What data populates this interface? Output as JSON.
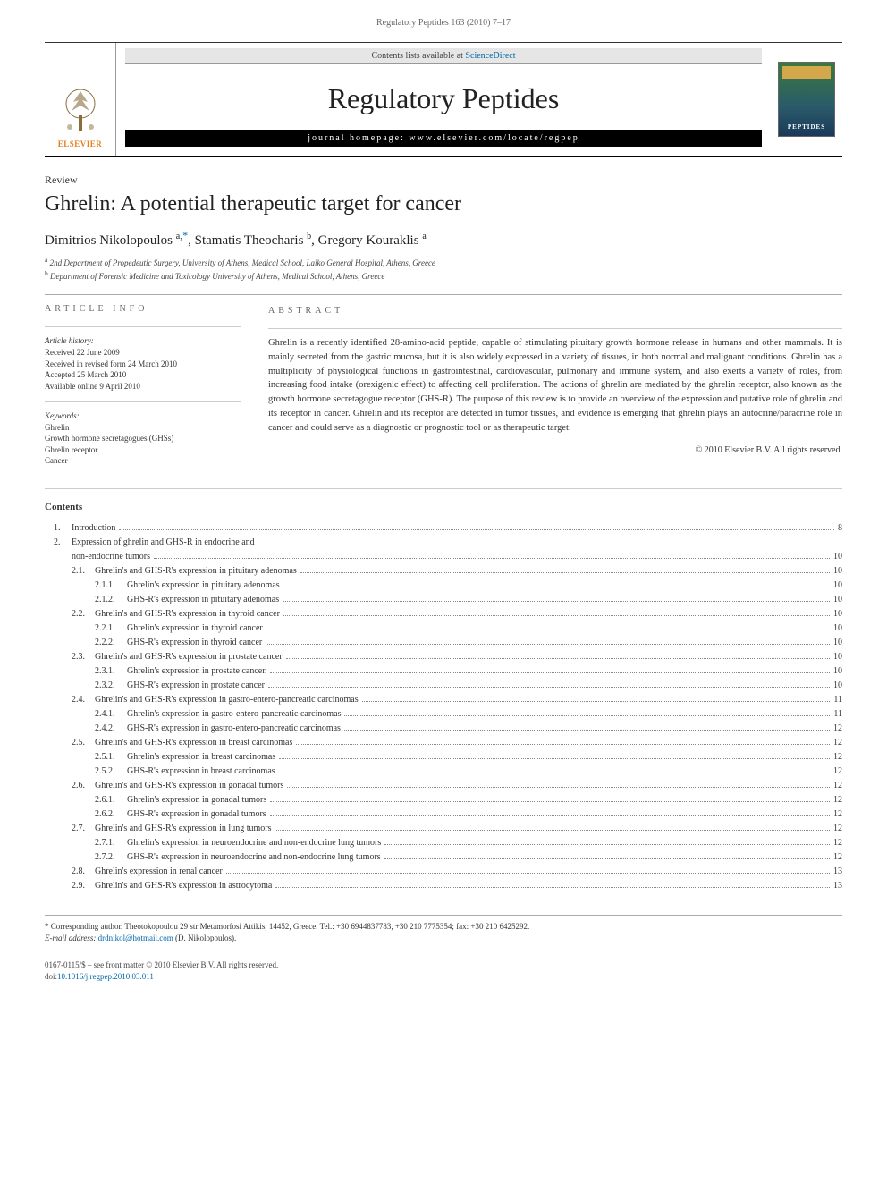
{
  "running_header": "Regulatory Peptides 163 (2010) 7–17",
  "banner": {
    "contents_lists_prefix": "Contents lists available at ",
    "contents_lists_link": "ScienceDirect",
    "journal_title": "Regulatory Peptides",
    "homepage_label": "journal homepage: www.elsevier.com/locate/regpep",
    "elsevier_label": "ELSEVIER",
    "cover_label": "PEPTIDES"
  },
  "article_type": "Review",
  "title": "Ghrelin: A potential therapeutic target for cancer",
  "authors": [
    {
      "name": "Dimitrios Nikolopoulos",
      "affil": "a",
      "corresponding": true
    },
    {
      "name": "Stamatis Theocharis",
      "affil": "b",
      "corresponding": false
    },
    {
      "name": "Gregory Kouraklis",
      "affil": "a",
      "corresponding": false
    }
  ],
  "affiliations": [
    {
      "mark": "a",
      "text": "2nd Department of Propedeutic Surgery, University of Athens, Medical School, Laiko General Hospital, Athens, Greece"
    },
    {
      "mark": "b",
      "text": "Department of Forensic Medicine and Toxicology University of Athens, Medical School, Athens, Greece"
    }
  ],
  "article_info": {
    "heading": "ARTICLE INFO",
    "history_label": "Article history:",
    "history": [
      "Received 22 June 2009",
      "Received in revised form 24 March 2010",
      "Accepted 25 March 2010",
      "Available online 9 April 2010"
    ],
    "keywords_label": "Keywords:",
    "keywords": [
      "Ghrelin",
      "Growth hormone secretagogues (GHSs)",
      "Ghrelin receptor",
      "Cancer"
    ]
  },
  "abstract": {
    "heading": "ABSTRACT",
    "text": "Ghrelin is a recently identified 28-amino-acid peptide, capable of stimulating pituitary growth hormone release in humans and other mammals. It is mainly secreted from the gastric mucosa, but it is also widely expressed in a variety of tissues, in both normal and malignant conditions. Ghrelin has a multiplicity of physiological functions in gastrointestinal, cardiovascular, pulmonary and immune system, and also exerts a variety of roles, from increasing food intake (orexigenic effect) to affecting cell proliferation. The actions of ghrelin are mediated by the ghrelin receptor, also known as the growth hormone secretagogue receptor (GHS-R). The purpose of this review is to provide an overview of the expression and putative role of ghrelin and its receptor in cancer. Ghrelin and its receptor are detected in tumor tissues, and evidence is emerging that ghrelin plays an autocrine/paracrine role in cancer and could serve as a diagnostic or prognostic tool or as therapeutic target.",
    "copyright": "© 2010 Elsevier B.V. All rights reserved."
  },
  "contents": {
    "title": "Contents",
    "items": [
      {
        "level": 1,
        "num": "1.",
        "label": "Introduction",
        "page": "8"
      },
      {
        "level": 1,
        "num": "2.",
        "label": "Expression of ghrelin and GHS-R in endocrine and",
        "page": ""
      },
      {
        "level": 1,
        "num": "",
        "label": "non-endocrine tumors",
        "page": "10"
      },
      {
        "level": 2,
        "num": "2.1.",
        "label": "Ghrelin's and GHS-R's expression in pituitary adenomas",
        "page": "10"
      },
      {
        "level": 3,
        "num": "2.1.1.",
        "label": "Ghrelin's expression in pituitary adenomas",
        "page": "10"
      },
      {
        "level": 3,
        "num": "2.1.2.",
        "label": "GHS-R's expression in pituitary adenomas",
        "page": "10"
      },
      {
        "level": 2,
        "num": "2.2.",
        "label": "Ghrelin's and GHS-R's expression in thyroid cancer",
        "page": "10"
      },
      {
        "level": 3,
        "num": "2.2.1.",
        "label": "Ghrelin's expression in thyroid cancer",
        "page": "10"
      },
      {
        "level": 3,
        "num": "2.2.2.",
        "label": "GHS-R's expression in thyroid cancer",
        "page": "10"
      },
      {
        "level": 2,
        "num": "2.3.",
        "label": "Ghrelin's and GHS-R's expression in prostate cancer",
        "page": "10"
      },
      {
        "level": 3,
        "num": "2.3.1.",
        "label": "Ghrelin's expression in prostate cancer.",
        "page": "10"
      },
      {
        "level": 3,
        "num": "2.3.2.",
        "label": "GHS-R's expression in prostate cancer",
        "page": "10"
      },
      {
        "level": 2,
        "num": "2.4.",
        "label": "Ghrelin's and GHS-R's expression in gastro-entero-pancreatic carcinomas",
        "page": "11"
      },
      {
        "level": 3,
        "num": "2.4.1.",
        "label": "Ghrelin's expression in gastro-entero-pancreatic carcinomas",
        "page": "11"
      },
      {
        "level": 3,
        "num": "2.4.2.",
        "label": "GHS-R's expression in gastro-entero-pancreatic carcinomas",
        "page": "12"
      },
      {
        "level": 2,
        "num": "2.5.",
        "label": "Ghrelin's and GHS-R's expression in breast carcinomas",
        "page": "12"
      },
      {
        "level": 3,
        "num": "2.5.1.",
        "label": "Ghrelin's expression in breast carcinomas",
        "page": "12"
      },
      {
        "level": 3,
        "num": "2.5.2.",
        "label": "GHS-R's expression in breast carcinomas",
        "page": "12"
      },
      {
        "level": 2,
        "num": "2.6.",
        "label": "Ghrelin's and GHS-R's expression in gonadal tumors",
        "page": "12"
      },
      {
        "level": 3,
        "num": "2.6.1.",
        "label": "Ghrelin's expression in gonadal tumors",
        "page": "12"
      },
      {
        "level": 3,
        "num": "2.6.2.",
        "label": "GHS-R's expression in gonadal tumors",
        "page": "12"
      },
      {
        "level": 2,
        "num": "2.7.",
        "label": "Ghrelin's and GHS-R's expression in lung tumors",
        "page": "12"
      },
      {
        "level": 3,
        "num": "2.7.1.",
        "label": "Ghrelin's expression in neuroendocrine and non-endocrine lung tumors",
        "page": "12"
      },
      {
        "level": 3,
        "num": "2.7.2.",
        "label": "GHS-R's expression in neuroendocrine and non-endocrine lung tumors",
        "page": "12"
      },
      {
        "level": 2,
        "num": "2.8.",
        "label": "Ghrelin's expression in renal cancer",
        "page": "13"
      },
      {
        "level": 2,
        "num": "2.9.",
        "label": "Ghrelin's and GHS-R's expression in astrocytoma",
        "page": "13"
      }
    ]
  },
  "footnote": {
    "corr_mark": "*",
    "corr_text": "Corresponding author. Theotokopoulou 29 str Metamorfosi Attikis, 14452, Greece. Tel.: +30 6944837783, +30 210 7775354; fax: +30 210 6425292.",
    "email_label": "E-mail address:",
    "email": "drdnikol@hotmail.com",
    "email_owner": "(D. Nikolopoulos)."
  },
  "footer": {
    "line1": "0167-0115/$ – see front matter © 2010 Elsevier B.V. All rights reserved.",
    "doi_label": "doi:",
    "doi": "10.1016/j.regpep.2010.03.011"
  },
  "colors": {
    "text": "#333333",
    "link": "#0066aa",
    "accent_orange": "#e67e22",
    "banner_dark": "#000000",
    "rule": "#aaaaaa"
  },
  "typography": {
    "body_font": "Georgia, 'Times New Roman', serif",
    "body_size_pt": 10,
    "journal_title_size_pt": 28,
    "article_title_size_pt": 20
  }
}
